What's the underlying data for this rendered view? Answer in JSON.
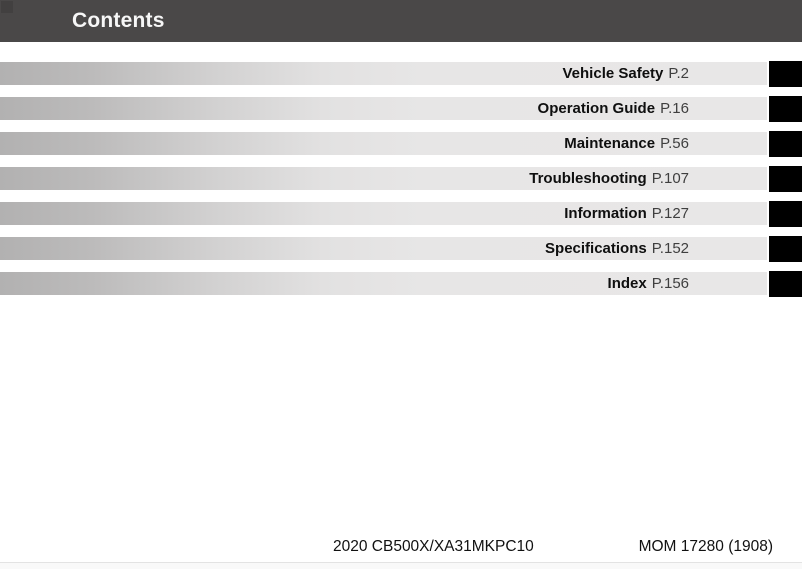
{
  "header": {
    "title": "Contents"
  },
  "contents": {
    "rows": [
      {
        "label": "Vehicle Safety",
        "page": "P.2"
      },
      {
        "label": "Operation Guide",
        "page": "P.16"
      },
      {
        "label": "Maintenance",
        "page": "P.56"
      },
      {
        "label": "Troubleshooting",
        "page": "P.107"
      },
      {
        "label": "Information",
        "page": "P.127"
      },
      {
        "label": "Specifications",
        "page": "P.152"
      },
      {
        "label": "Index",
        "page": "P.156"
      }
    ]
  },
  "footer": {
    "model": "2020 CB500X/XA31MKPC10",
    "code": "MOM 17280 (1908)"
  },
  "colors": {
    "header_bg": "#4a4848",
    "chapter_tab": "#000000",
    "bar_gradient_start": "#b2b1b1",
    "bar_gradient_end": "#e8e7e7"
  }
}
